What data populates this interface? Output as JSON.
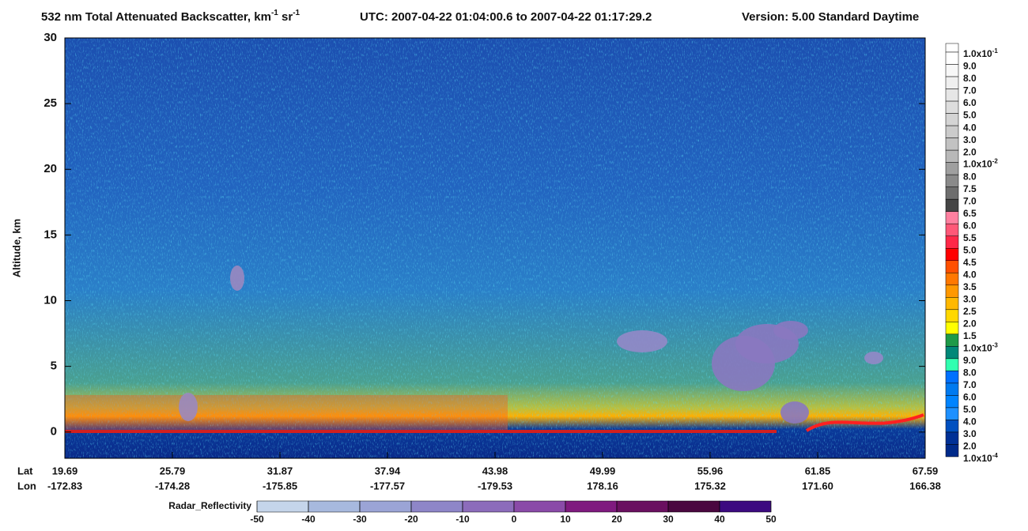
{
  "chart_data": {
    "type": "heatmap",
    "title_parts": [
      "532 nm Total Attenuated Backscatter, km",
      "-1",
      " sr",
      "-1"
    ],
    "utc": "UTC:  2007-04-22 01:04:00.6  to  2007-04-22 01:17:29.2",
    "version": "Version: 5.00  Standard  Daytime",
    "ylabel": "Altitude, km",
    "ylim": [
      -2,
      30
    ],
    "yticks": [
      0,
      5,
      10,
      15,
      20,
      25,
      30
    ],
    "lat_title": "Lat",
    "lon_title": "Lon",
    "lat_labels": [
      "19.69",
      "25.79",
      "31.87",
      "37.94",
      "43.98",
      "49.99",
      "55.96",
      "61.85",
      "67.59"
    ],
    "lon_labels": [
      "-172.83",
      "-174.28",
      "-175.85",
      "-177.57",
      "-179.53",
      "178.16",
      "175.32",
      "171.60",
      "166.38"
    ],
    "colorbar_labels": [
      {
        "text": "1.0x10",
        "sup": "-1"
      },
      "9.0",
      "8.0",
      "7.0",
      "6.0",
      "5.0",
      "4.0",
      "3.0",
      "2.0",
      {
        "text": "1.0x10",
        "sup": "-2"
      },
      "8.0",
      "7.5",
      "7.0",
      "6.5",
      "6.0",
      "5.5",
      "5.0",
      "4.5",
      "4.0",
      "3.5",
      "3.0",
      "2.5",
      "2.0",
      "1.5",
      {
        "text": "1.0x10",
        "sup": "-3"
      },
      "9.0",
      "8.0",
      "7.0",
      "6.0",
      "5.0",
      "4.0",
      "3.0",
      "2.0",
      {
        "text": "1.0x10",
        "sup": "-4"
      }
    ],
    "colorbar_colors": [
      "#ffffff",
      "#f7f7f7",
      "#efefef",
      "#e6e6e6",
      "#dddddd",
      "#d4d4d4",
      "#cbcbcb",
      "#c2c2c2",
      "#b8b8b8",
      "#9f9f9f",
      "#8a8a8a",
      "#6e6e6e",
      "#454545",
      "#ff80a0",
      "#ff5878",
      "#ff2848",
      "#ff0000",
      "#ff5000",
      "#ff7800",
      "#ff9800",
      "#ffb800",
      "#ffd800",
      "#ffff00",
      "#1e9a48",
      "#008878",
      "#30ffb0",
      "#0070ff",
      "#007af0",
      "#0084ff",
      "#1e90ff",
      "#0050c0",
      "#003096",
      "#002a8a"
    ],
    "radar_label": "Radar_Reflectivity",
    "radar_ticks": [
      -50,
      -40,
      -30,
      -20,
      -10,
      0,
      10,
      20,
      30,
      40,
      50
    ],
    "radar_colors": [
      "#c5d5ea",
      "#a7b9de",
      "#9ba4d6",
      "#8e86c8",
      "#8c6cbb",
      "#8a4aa8",
      "#7f1a7f",
      "#6a1060",
      "#4a0840",
      "#3c0a80"
    ]
  }
}
